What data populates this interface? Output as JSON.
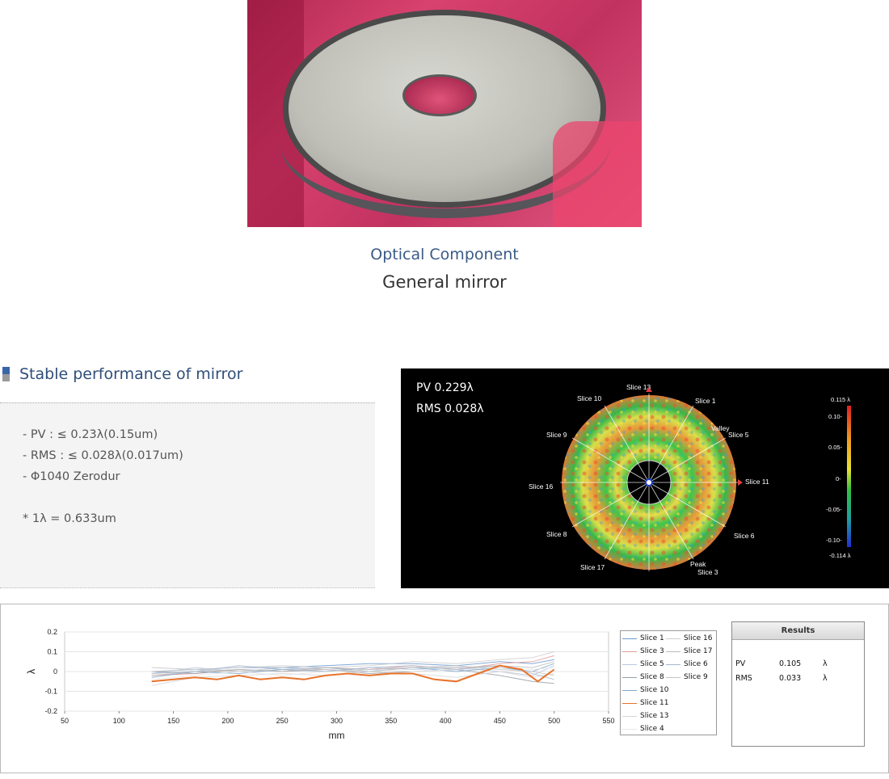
{
  "photo": {
    "alt": "mirror-photo"
  },
  "caption": {
    "category": "Optical Component",
    "name": "General mirror"
  },
  "section": {
    "title": "Stable performance of mirror"
  },
  "specs": {
    "pv": "- PV    : ≤ 0.23λ(0.15um)",
    "rms": "- RMS : ≤ 0.028λ(0.017um)",
    "diameter": "- Φ1040 Zerodur",
    "note": "* 1λ = 0.633um"
  },
  "interferogram": {
    "pv": "PV    0.229λ",
    "rms": "RMS 0.028λ",
    "slices": [
      "Slice 13",
      "Slice 1",
      "Slice 5",
      "Slice 11",
      "Slice 6",
      "Slice 3",
      "Slice 17",
      "Slice 8",
      "Slice 16",
      "Slice 9",
      "Slice 10"
    ],
    "markers": [
      "Valley",
      "Peak"
    ],
    "scale": [
      "0.115 λ",
      "0.10-",
      "0.05-",
      "0-",
      "-0.05-",
      "-0.10-",
      "-0.114 λ"
    ]
  },
  "chart_data": {
    "type": "line",
    "xlabel": "mm",
    "ylabel": "λ",
    "xlim": [
      50,
      550
    ],
    "ylim": [
      -0.2,
      0.2
    ],
    "x_ticks": [
      50,
      100,
      150,
      200,
      250,
      300,
      350,
      400,
      450,
      500,
      550
    ],
    "y_ticks": [
      0.2,
      0.1,
      0,
      -0.1,
      -0.2
    ],
    "y_tick_labels": [
      "0.2",
      "0.1",
      "0",
      "-0.1",
      "-0.2"
    ],
    "grid": "horizontal",
    "series": [
      {
        "name": "Slice 11",
        "color": "#e8722a",
        "highlight": true,
        "x": [
          130,
          150,
          170,
          190,
          210,
          230,
          250,
          270,
          290,
          310,
          330,
          350,
          370,
          390,
          410,
          430,
          450,
          470,
          485,
          490,
          500
        ],
        "y": [
          -0.05,
          -0.04,
          -0.03,
          -0.04,
          -0.02,
          -0.04,
          -0.03,
          -0.04,
          -0.02,
          -0.01,
          -0.02,
          -0.01,
          -0.01,
          -0.04,
          -0.05,
          -0.01,
          0.03,
          0.01,
          -0.05,
          -0.03,
          0.01
        ]
      },
      {
        "name": "Slice 1",
        "color": "#6c9bd2",
        "x": [
          130,
          170,
          210,
          250,
          290,
          330,
          370,
          410,
          450,
          480,
          500
        ],
        "y": [
          0.0,
          0.01,
          0.02,
          0.02,
          0.03,
          0.04,
          0.04,
          0.03,
          0.05,
          0.04,
          0.06
        ]
      },
      {
        "name": "Slice 3",
        "color": "#e29a9a",
        "x": [
          130,
          170,
          210,
          250,
          290,
          330,
          370,
          410,
          450,
          480,
          500
        ],
        "y": [
          -0.02,
          -0.01,
          0.01,
          0.0,
          0.02,
          0.01,
          0.03,
          0.01,
          0.04,
          0.05,
          0.08
        ]
      },
      {
        "name": "Slice 5",
        "color": "#b8c8e0",
        "x": [
          130,
          170,
          210,
          250,
          290,
          330,
          370,
          410,
          450,
          480,
          500
        ],
        "y": [
          -0.01,
          0.02,
          0.0,
          0.01,
          0.0,
          0.02,
          0.01,
          0.02,
          0.0,
          -0.02,
          0.03
        ]
      },
      {
        "name": "Slice 8",
        "color": "#9aa0a8",
        "x": [
          130,
          170,
          210,
          250,
          290,
          330,
          370,
          410,
          450,
          480,
          500
        ],
        "y": [
          0.0,
          -0.01,
          0.01,
          0.0,
          0.01,
          -0.01,
          0.0,
          0.01,
          -0.02,
          -0.05,
          -0.06
        ]
      },
      {
        "name": "Slice 10",
        "color": "#7fa7cc",
        "x": [
          130,
          170,
          210,
          250,
          290,
          330,
          370,
          410,
          450,
          480,
          500
        ],
        "y": [
          -0.03,
          0.0,
          -0.01,
          0.01,
          0.02,
          0.0,
          0.02,
          0.0,
          0.02,
          0.0,
          0.04
        ]
      },
      {
        "name": "Slice 13",
        "color": "#d6d6d6",
        "x": [
          130,
          170,
          210,
          250,
          290,
          330,
          370,
          410,
          450,
          480,
          500
        ],
        "y": [
          -0.07,
          -0.03,
          -0.02,
          -0.01,
          -0.02,
          0.0,
          -0.01,
          -0.03,
          0.0,
          -0.03,
          -0.01
        ]
      },
      {
        "name": "Slice 4",
        "color": "#e6e6e6",
        "x": [
          130,
          170,
          210,
          250,
          290,
          330,
          370,
          410,
          450,
          480,
          500
        ],
        "y": [
          -0.04,
          -0.02,
          0.0,
          -0.02,
          0.0,
          0.01,
          0.0,
          0.01,
          0.02,
          0.01,
          0.02
        ]
      },
      {
        "name": "Slice 16",
        "color": "#cfcfcf",
        "x": [
          130,
          170,
          210,
          250,
          290,
          330,
          370,
          410,
          450,
          480,
          500
        ],
        "y": [
          0.0,
          0.01,
          0.02,
          0.03,
          0.02,
          0.03,
          0.05,
          0.04,
          0.06,
          0.07,
          0.1
        ]
      },
      {
        "name": "Slice 17",
        "color": "#bcbcbc",
        "x": [
          130,
          170,
          210,
          250,
          290,
          330,
          370,
          410,
          450,
          480,
          500
        ],
        "y": [
          -0.02,
          0.0,
          0.01,
          0.0,
          0.02,
          0.01,
          0.02,
          0.02,
          0.03,
          0.02,
          0.05
        ]
      },
      {
        "name": "Slice 6",
        "color": "#a8b8cc",
        "x": [
          130,
          170,
          210,
          250,
          290,
          330,
          370,
          410,
          450,
          480,
          500
        ],
        "y": [
          -0.01,
          0.0,
          0.03,
          0.01,
          0.0,
          0.02,
          0.03,
          0.01,
          0.03,
          -0.01,
          -0.04
        ]
      },
      {
        "name": "Slice 9",
        "color": "#c6c6c6",
        "x": [
          130,
          170,
          210,
          250,
          290,
          330,
          370,
          410,
          450,
          480,
          500
        ],
        "y": [
          0.02,
          0.01,
          0.0,
          0.02,
          0.01,
          0.0,
          0.02,
          0.03,
          0.01,
          0.0,
          -0.02
        ]
      }
    ]
  },
  "legend": {
    "items": [
      "Slice 1",
      "Slice 3",
      "Slice 5",
      "Slice 8",
      "Slice 10",
      "Slice 11",
      "Slice 13",
      "Slice 4",
      "Slice 16",
      "Slice 17",
      "Slice 6",
      "Slice 9"
    ]
  },
  "results": {
    "title": "Results",
    "rows": [
      {
        "label": "PV",
        "value": "0.105",
        "unit": "λ"
      },
      {
        "label": "RMS",
        "value": "0.033",
        "unit": "λ"
      }
    ]
  }
}
